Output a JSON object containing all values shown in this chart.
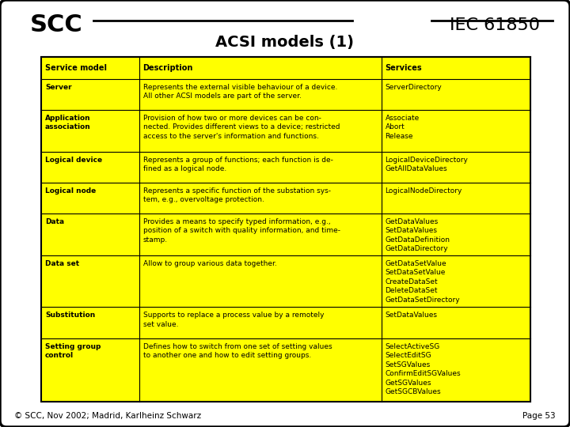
{
  "title": "ACSI models (1)",
  "scc_text": "SCC",
  "iec_text": "IEC 61850",
  "footer_left": "© SCC, Nov 2002; Madrid, Karlheinz Schwarz",
  "footer_right": "Page 53",
  "bg_color": "#ffffff",
  "table_bg": "#ffff00",
  "headers": [
    "Service model",
    "Description",
    "Services"
  ],
  "rows": [
    {
      "model": "Server",
      "description": "Represents the external visible behaviour of a device.\nAll other ACSI models are part of the server.",
      "services": "ServerDirectory"
    },
    {
      "model": "Application\nassociation",
      "description": "Provision of how two or more devices can be con-\nnected. Provides different views to a device; restricted\naccess to the server's information and functions.",
      "services": "Associate\nAbort\nRelease"
    },
    {
      "model": "Logical device",
      "description": "Represents a group of functions; each function is de-\nfined as a logical node.",
      "services": "LogicalDeviceDirectory\nGetAllDataValues"
    },
    {
      "model": "Logical node",
      "description": "Represents a specific function of the substation sys-\ntem, e.g., overvoltage protection.",
      "services": "LogicalNodeDirectory"
    },
    {
      "model": "Data",
      "description": "Provides a means to specify typed information, e.g.,\nposition of a switch with quality information, and time-\nstamp.",
      "services": "GetDataValues\nSetDataValues\nGetDataDefinition\nGetDataDirectory"
    },
    {
      "model": "Data set",
      "description": "Allow to group various data together.",
      "services": "GetDataSetValue\nSetDataSetValue\nCreateDataSet\nDeleteDataSet\nGetDataSetDirectory"
    },
    {
      "model": "Substitution",
      "description": "Supports to replace a process value by a remotely\nset value.",
      "services": "SetDataValues"
    },
    {
      "model": "Setting group\ncontrol",
      "description": "Defines how to switch from one set of setting values\nto another one and how to edit setting groups.",
      "services": "SelectActiveSG\nSelectEditSG\nSetSGValues\nConfirmEditSGValues\nGetSGValues\nGetSGCBValues"
    }
  ]
}
